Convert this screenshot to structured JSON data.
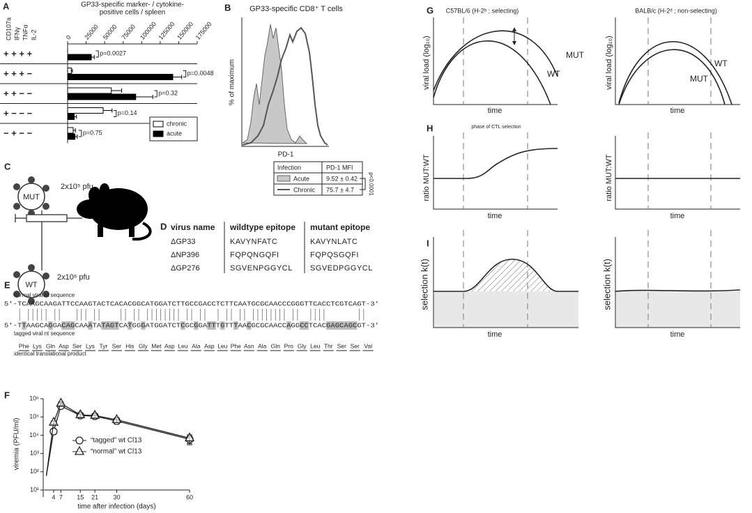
{
  "panel_labels": [
    "A",
    "B",
    "C",
    "D",
    "E",
    "F",
    "G",
    "H",
    "I"
  ],
  "chart_data": [
    {
      "type": "bar",
      "orientation": "horizontal",
      "title": [
        "GP33-specific marker- / cytokine-",
        "positive cells / spleen"
      ],
      "row_headers": [
        "CD107a",
        "IFNγ",
        "TNFα",
        "IL-2"
      ],
      "categories": [
        "+ + + +",
        "+ + + −",
        "+ + − −",
        "+ − − −",
        "− + − −"
      ],
      "series": [
        {
          "name": "chronic",
          "color": "#ffffff",
          "values": [
            0,
            5000,
            59000,
            48000,
            7500
          ],
          "errors": [
            0,
            1500,
            14000,
            12000,
            3000
          ]
        },
        {
          "name": "acute",
          "color": "#000000",
          "values": [
            32000,
            142000,
            92000,
            9000,
            10000
          ],
          "errors": [
            4000,
            12000,
            23000,
            3000,
            3000
          ]
        }
      ],
      "p_values": [
        "p=0.0027",
        "p=0.0048",
        "p=0.32",
        "p=0.14",
        "p=0.75"
      ],
      "xlim": [
        0,
        175000
      ],
      "xticks": [
        0,
        25000,
        50000,
        75000,
        100000,
        125000,
        150000,
        175000
      ],
      "legend": "lower right"
    },
    {
      "type": "line",
      "log_y": true,
      "x_label": "time after infection (days)",
      "y_label": "viremia (PFU/ml)",
      "x": [
        1,
        4,
        7,
        15,
        21,
        30,
        60
      ],
      "series": [
        {
          "name": "“tagged” wt Cl13",
          "marker": "circle",
          "color": "#222222",
          "values": [
            60,
            16000,
            400000,
            120000,
            110000,
            60000,
            6000
          ],
          "errors": [
            0,
            5000,
            100000,
            30000,
            30000,
            20000,
            3000
          ]
        },
        {
          "name": "“normal” wt Cl13",
          "marker": "triangle",
          "color": "#222222",
          "values": [
            60,
            50000,
            550000,
            130000,
            120000,
            70000,
            7000
          ],
          "errors": [
            0,
            10000,
            120000,
            30000,
            30000,
            20000,
            3500
          ]
        }
      ],
      "xlim": [
        0,
        60
      ],
      "xticks": [
        4,
        7,
        15,
        21,
        30,
        60
      ],
      "ylim": [
        10,
        1000000
      ],
      "yticks": [
        {
          "value": 10,
          "label": "10¹"
        },
        {
          "value": 100,
          "label": "10²"
        },
        {
          "value": 1000,
          "label": "10³"
        },
        {
          "value": 10000,
          "label": "10⁴"
        },
        {
          "value": 100000,
          "label": "10⁵"
        },
        {
          "value": 1000000,
          "label": "10⁶"
        }
      ],
      "legend": "lower left"
    }
  ],
  "panel_b": {
    "title": "GP33-specific CD8⁺ T cells",
    "y_label": "% of maximum",
    "x_label": "PD-1",
    "table": {
      "header": [
        "Infection",
        "PD-1 MFI"
      ],
      "rows": [
        [
          "Acute",
          "9.52 ± 0.42"
        ],
        [
          "Chronic",
          "75.7 ± 4.7"
        ]
      ]
    },
    "p_value": "p<0.0001"
  },
  "panel_c": {
    "mut_label": "MUT",
    "mut_dose": "2x10⁵ pfu",
    "wt_label": "WT",
    "wt_dose": "2x10⁶ pfu"
  },
  "panel_d": {
    "header": [
      "virus name",
      "wildtype epitope",
      "mutant epitope"
    ],
    "rows": [
      [
        "ΔGP33",
        "KAVYNFATC",
        "KAVYNLATC"
      ],
      [
        "ΔNP396",
        "FQPQNGQFI",
        "FQPQSGQFI"
      ],
      [
        "ΔGP276",
        "SGVENPGGYCL",
        "SGVEDPGGYCL"
      ]
    ]
  },
  "panel_e": {
    "normal_label": "normal viral nt sequence",
    "normal_sequence": "5'-TCAAGCAAGATTCCAAGTACTCACACGGCATGGATCTTGCCGACCTCTTCAATGCGCAACCCGGGTTCACCTCGTCAGT-3'",
    "tagged_sequence": "5'-TTAAGCAGGACAGCAAATATAGTCATGGGATGGATCTCGCGGATTTGTTTAACGCGCAACCAGGCCTCACGAGCAGCGT-3'",
    "tagged_label": "tagged viral nt sequence",
    "amino_acids": [
      "Phe",
      "Lys",
      "Gln",
      "Asp",
      "Ser",
      "Lys",
      "Tyr",
      "Ser",
      "His",
      "Gly",
      "Met",
      "Asp",
      "Leu",
      "Ala",
      "Asp",
      "Leu",
      "Phe",
      "Asn",
      "Ala",
      "Gln",
      "Pro",
      "Gly",
      "Leu",
      "Thr",
      "Ser",
      "Ser",
      "Val"
    ],
    "product_label": "identical translational product"
  },
  "panel_g": {
    "left_title": "C57BL/6 (H-2ᵇ ; selecting)",
    "right_title": "BALB/c (H-2ᵈ ; non-selecting)",
    "y_label": "viral load (log₁₀)",
    "x_label": "time",
    "mut": "MUT",
    "wt": "WT"
  },
  "panel_h": {
    "annotation": "phase of CTL selection",
    "y_label": "ratio MUT:WT"
  },
  "panel_i": {
    "y_label": "selection k(t)"
  }
}
